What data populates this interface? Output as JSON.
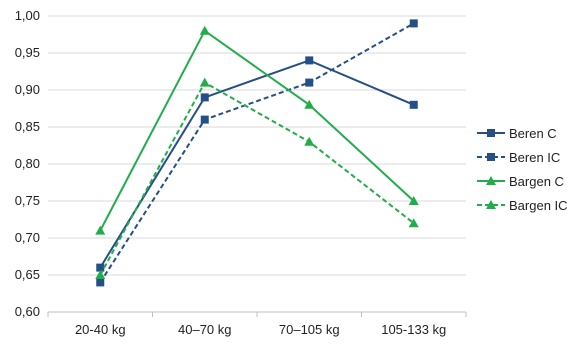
{
  "chart_data": {
    "type": "line",
    "title": "",
    "xlabel": "",
    "ylabel": "",
    "categories": [
      "20-40 kg",
      "40–70 kg",
      "70–105 kg",
      "105-133 kg"
    ],
    "ylim": [
      0.6,
      1.0
    ],
    "ytick_labels": [
      "0,60",
      "0,65",
      "0,70",
      "0,75",
      "0,80",
      "0,85",
      "0,90",
      "0,95",
      "1,00"
    ],
    "grid": "horizontal",
    "legend_position": "right",
    "series": [
      {
        "name": "Beren C",
        "values": [
          0.66,
          0.89,
          0.94,
          0.88
        ],
        "color": "#254f87",
        "dash": "solid",
        "marker": "square"
      },
      {
        "name": "Beren IC",
        "values": [
          0.64,
          0.86,
          0.91,
          0.99
        ],
        "color": "#254f87",
        "dash": "dashed",
        "marker": "square"
      },
      {
        "name": "Bargen C",
        "values": [
          0.71,
          0.98,
          0.88,
          0.75
        ],
        "color": "#22ad4b",
        "dash": "solid",
        "marker": "triangle"
      },
      {
        "name": "Bargen IC",
        "values": [
          0.65,
          0.91,
          0.83,
          0.72
        ],
        "color": "#22ad4b",
        "dash": "dashed",
        "marker": "triangle"
      }
    ]
  }
}
